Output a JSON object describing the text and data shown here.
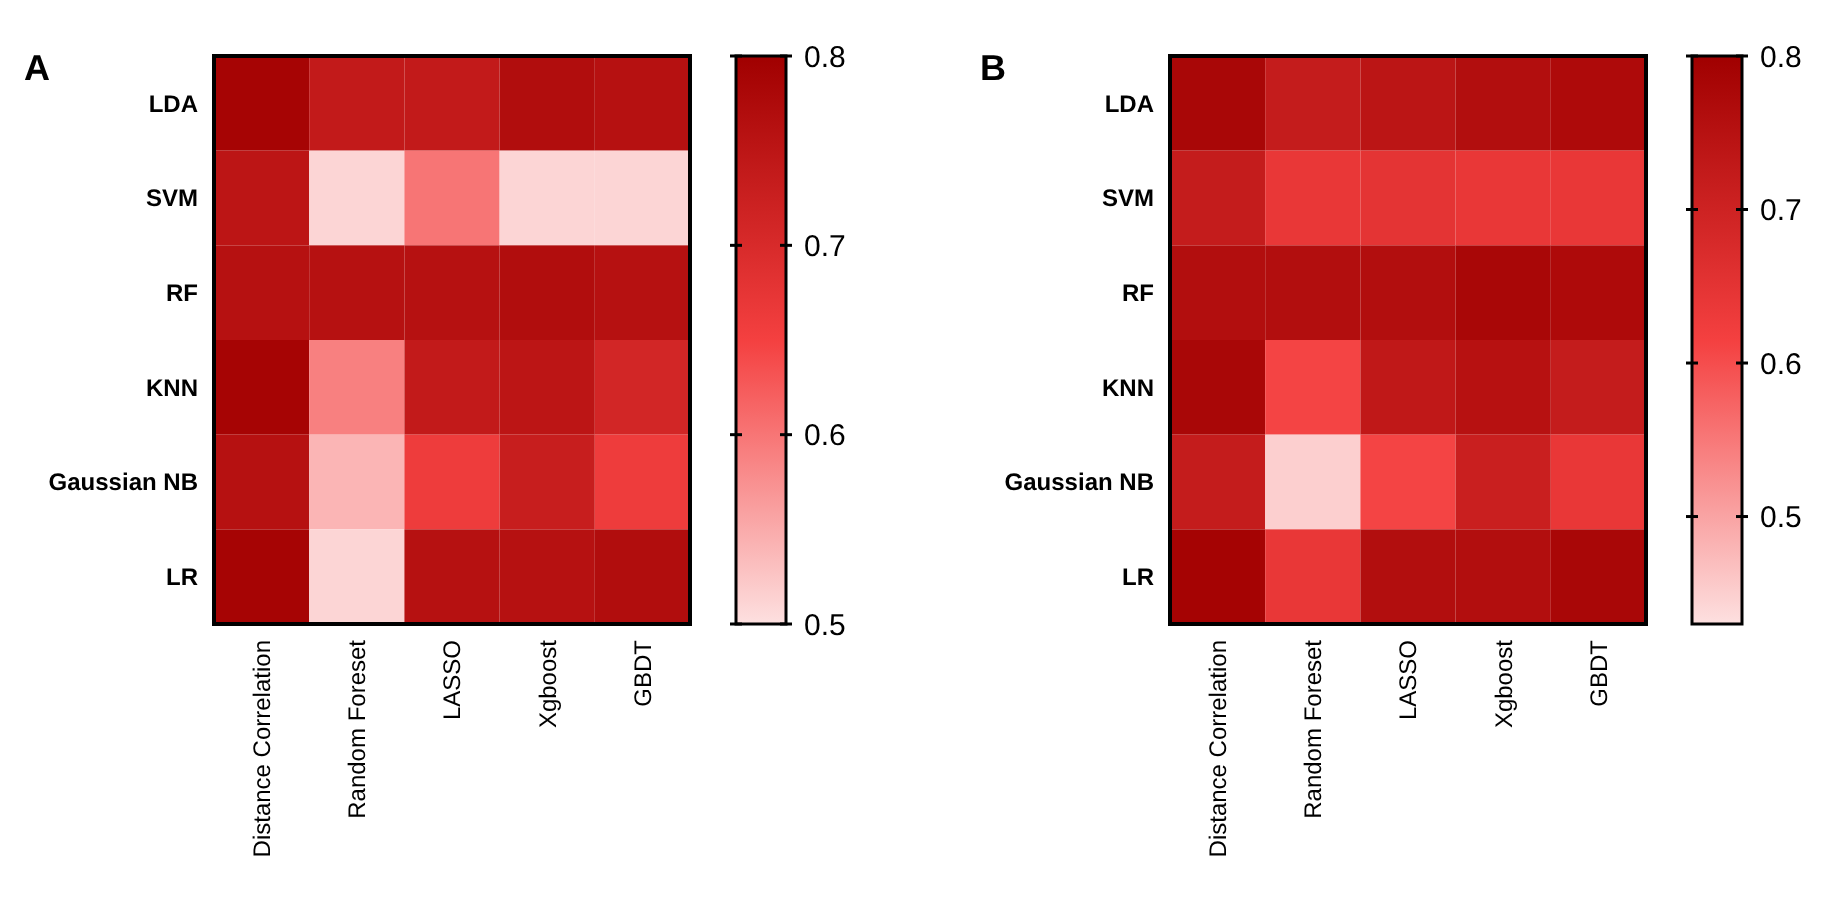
{
  "chart_data": [
    {
      "type": "heatmap",
      "title": "A",
      "categories": [
        "Distance Correlation",
        "Random Foreset",
        "LASSO",
        "Xgboost",
        "GBDT"
      ],
      "y_categories": [
        "LDA",
        "SVM",
        "RF",
        "KNN",
        "Gaussian NB",
        "LR"
      ],
      "cells": [
        [
          0.79,
          0.74,
          0.74,
          0.77,
          0.76
        ],
        [
          0.75,
          0.51,
          0.6,
          0.51,
          0.51
        ],
        [
          0.76,
          0.76,
          0.76,
          0.77,
          0.76
        ],
        [
          0.79,
          0.59,
          0.74,
          0.75,
          0.71
        ],
        [
          0.76,
          0.54,
          0.66,
          0.73,
          0.66
        ],
        [
          0.79,
          0.51,
          0.76,
          0.76,
          0.77
        ]
      ],
      "clim": [
        0.5,
        0.8
      ],
      "cticks": [
        0.5,
        0.6,
        0.7,
        0.8
      ]
    },
    {
      "type": "heatmap",
      "title": "B",
      "categories": [
        "Distance Correlation",
        "Random Foreset",
        "LASSO",
        "Xgboost",
        "GBDT"
      ],
      "y_categories": [
        "LDA",
        "SVM",
        "RF",
        "KNN",
        "Gaussian NB",
        "LR"
      ],
      "cells": [
        [
          0.78,
          0.72,
          0.74,
          0.76,
          0.77
        ],
        [
          0.72,
          0.64,
          0.65,
          0.64,
          0.64
        ],
        [
          0.76,
          0.76,
          0.76,
          0.78,
          0.77
        ],
        [
          0.78,
          0.61,
          0.73,
          0.75,
          0.72
        ],
        [
          0.72,
          0.45,
          0.61,
          0.71,
          0.64
        ],
        [
          0.79,
          0.64,
          0.76,
          0.76,
          0.78
        ]
      ],
      "clim": [
        0.43,
        0.8
      ],
      "cticks": [
        0.5,
        0.6,
        0.7,
        0.8
      ]
    }
  ]
}
